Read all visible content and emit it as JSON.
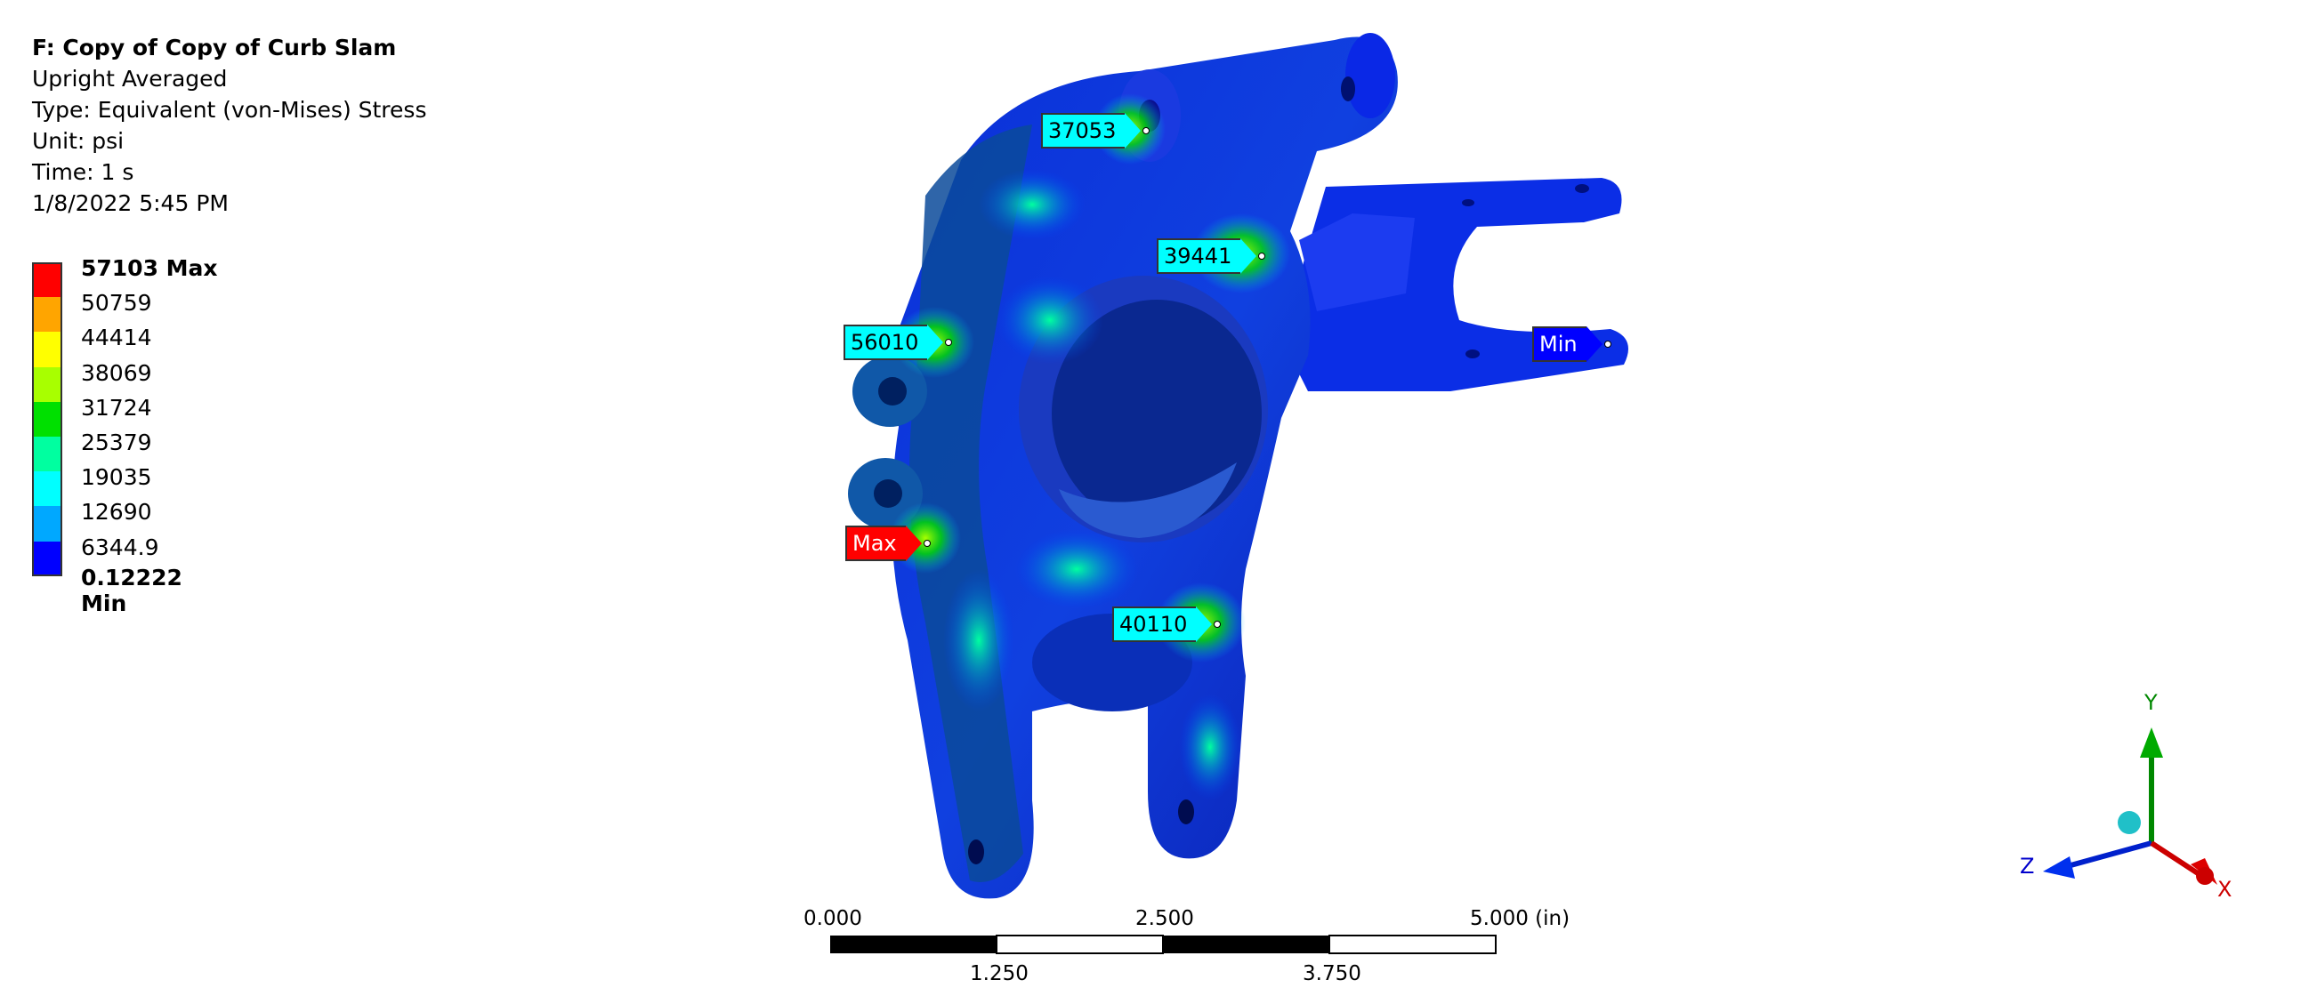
{
  "header": {
    "title": "F: Copy of Copy of Curb Slam",
    "line1": "Upright Averaged",
    "line2": "Type: Equivalent (von-Mises) Stress",
    "line3": "Unit: psi",
    "line4": "Time: 1 s",
    "line5": "1/8/2022 5:45 PM"
  },
  "legend": {
    "entries": [
      {
        "label": "57103 Max",
        "color": "#ff0000"
      },
      {
        "label": "50759",
        "color": "#ffa500"
      },
      {
        "label": "44414",
        "color": "#ffff00"
      },
      {
        "label": "38069",
        "color": "#a8ff00"
      },
      {
        "label": "31724",
        "color": "#00e000"
      },
      {
        "label": "25379",
        "color": "#00ffa0"
      },
      {
        "label": "19035",
        "color": "#00ffff"
      },
      {
        "label": "12690",
        "color": "#00a8ff"
      },
      {
        "label": "6344.9",
        "color": "#0000ff"
      }
    ],
    "min_label": "0.12222 Min"
  },
  "probes": [
    {
      "label": "37053",
      "color": "#00ffff"
    },
    {
      "label": "39441",
      "color": "#00ffff"
    },
    {
      "label": "56010",
      "color": "#00ffff"
    },
    {
      "label": "Min",
      "color": "#0000ff"
    },
    {
      "label": "Max",
      "color": "#ff0000"
    },
    {
      "label": "40110",
      "color": "#00ffff"
    }
  ],
  "scale_bar": {
    "tick_top": [
      "0.000",
      "2.500",
      "5.000 (in)"
    ],
    "tick_bottom": [
      "1.250",
      "3.750"
    ]
  },
  "triad": {
    "x": "X",
    "y": "Y",
    "z": "Z"
  },
  "colors": {
    "axis_x": "#cc0000",
    "axis_y": "#008800",
    "axis_z": "#0000cc"
  }
}
